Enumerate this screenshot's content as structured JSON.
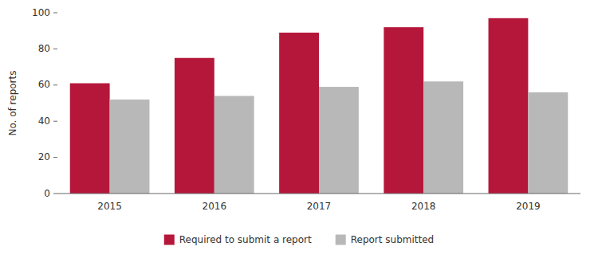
{
  "chart_data": {
    "type": "bar",
    "categories": [
      "2015",
      "2016",
      "2017",
      "2018",
      "2019"
    ],
    "series": [
      {
        "name": "Required to submit a report",
        "color": "#b5173a",
        "values": [
          61,
          75,
          89,
          92,
          97
        ]
      },
      {
        "name": "Report submitted",
        "color": "#b8b8b8",
        "values": [
          52,
          54,
          59,
          62,
          56
        ]
      }
    ],
    "ylabel": "No. of reports",
    "ylim": [
      0,
      100
    ],
    "yticks": [
      0,
      20,
      40,
      60,
      80,
      100
    ],
    "grid": false,
    "legend": "bottom"
  }
}
